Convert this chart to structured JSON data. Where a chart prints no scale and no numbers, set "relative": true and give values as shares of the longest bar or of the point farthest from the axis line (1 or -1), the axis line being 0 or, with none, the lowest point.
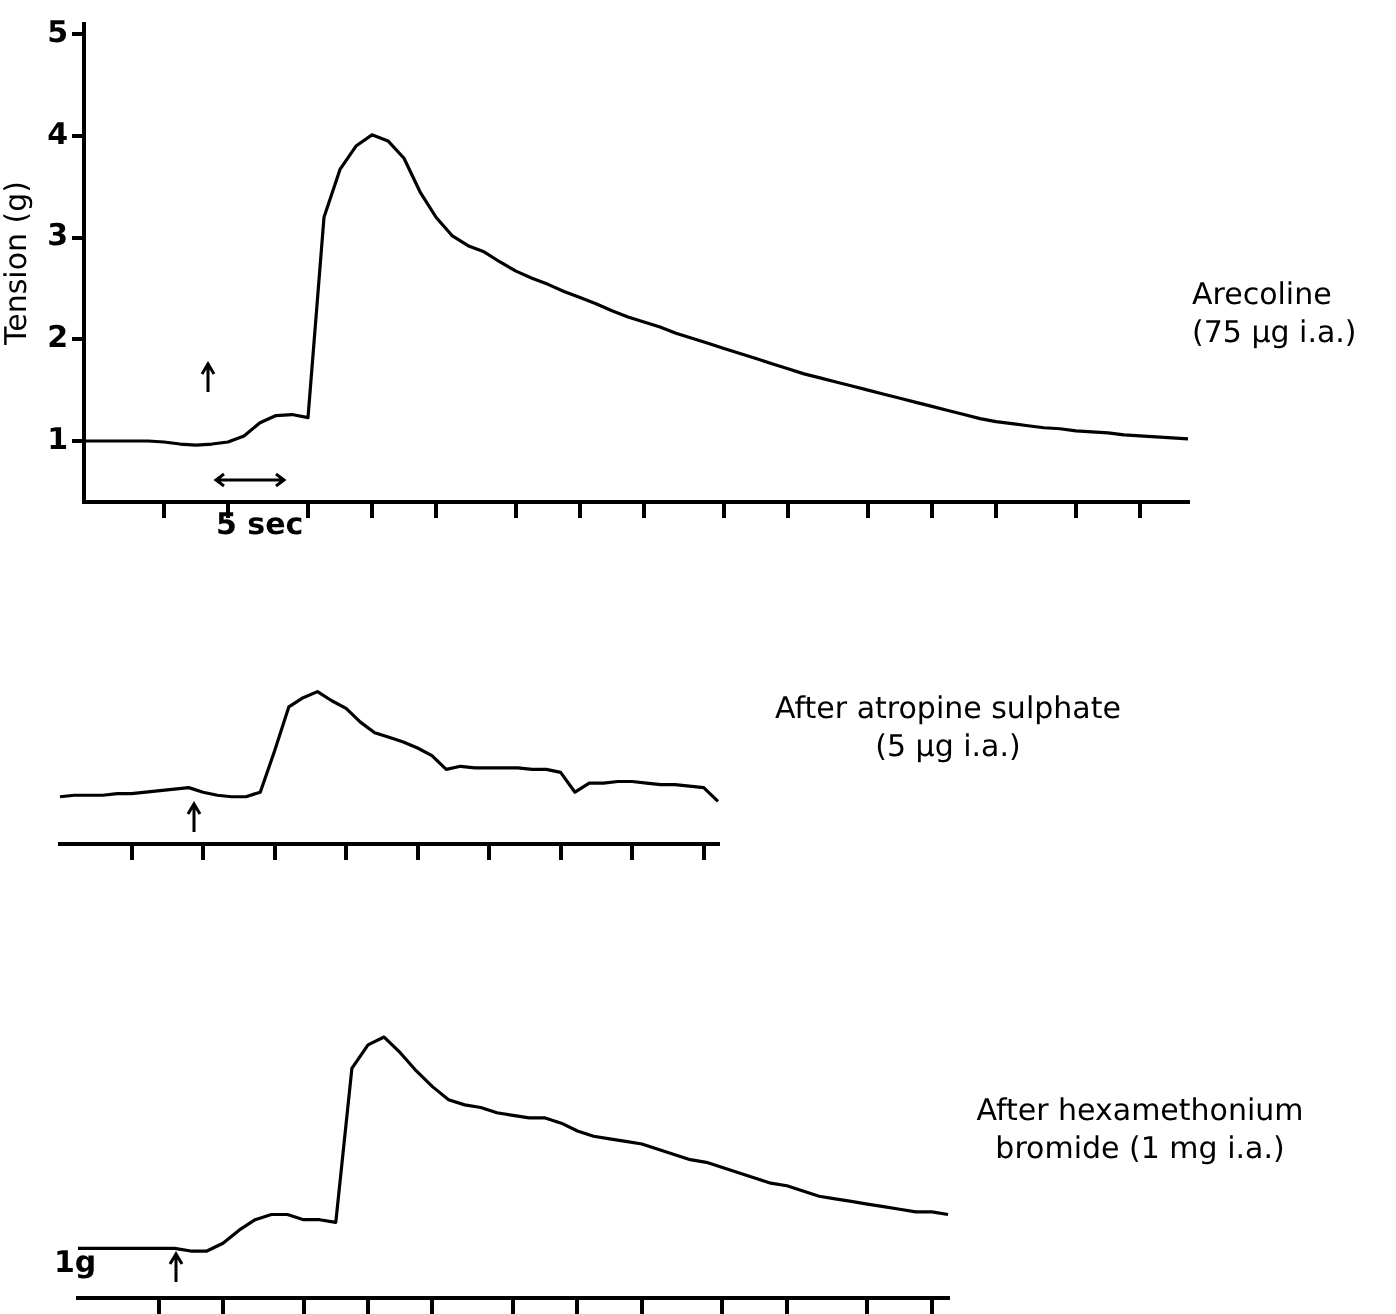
{
  "chart_data": [
    {
      "type": "line",
      "ylabel": "Tension (g)",
      "ylim": [
        0.4,
        5.1
      ],
      "yticks": [
        1,
        2,
        3,
        4,
        5
      ],
      "grid": false,
      "legend": false,
      "marker": "none",
      "line_style": "solid",
      "tick_labels": "y",
      "annotations": [
        "Arecoline (75 μg i.a.)",
        "5 sec"
      ],
      "categories": [
        null,
        null,
        null,
        null,
        null,
        null,
        null,
        null,
        null,
        null,
        null,
        null,
        null,
        null,
        null,
        null,
        null,
        null,
        null,
        null,
        null,
        null,
        null,
        null,
        null,
        null,
        null,
        null,
        null,
        null,
        null,
        null,
        null,
        null,
        null,
        null,
        null,
        null,
        null,
        null,
        null,
        null,
        null,
        null,
        null,
        null,
        null,
        null,
        null,
        null,
        null,
        null,
        null,
        null,
        null,
        null,
        null,
        null,
        null,
        null,
        null,
        null,
        null,
        null,
        null,
        null,
        null,
        null,
        null,
        null
      ],
      "series": [
        {
          "color": "#000000",
          "values": [
            1.0,
            1.0,
            1.0,
            1.0,
            1.0,
            0.99,
            0.97,
            0.96,
            0.97,
            0.99,
            1.05,
            1.18,
            1.25,
            1.26,
            1.23,
            3.2,
            3.67,
            3.9,
            4.01,
            3.95,
            3.78,
            3.45,
            3.2,
            3.02,
            2.92,
            2.86,
            2.76,
            2.67,
            2.6,
            2.54,
            2.47,
            2.41,
            2.35,
            2.28,
            2.22,
            2.17,
            2.12,
            2.06,
            2.01,
            1.96,
            1.91,
            1.86,
            1.81,
            1.76,
            1.71,
            1.66,
            1.62,
            1.58,
            1.54,
            1.5,
            1.46,
            1.42,
            1.38,
            1.34,
            1.3,
            1.26,
            1.22,
            1.19,
            1.17,
            1.15,
            1.13,
            1.12,
            1.1,
            1.09,
            1.08,
            1.06,
            1.05,
            1.04,
            1.03,
            1.02
          ]
        }
      ]
    },
    {
      "type": "line",
      "relative": true,
      "grid": false,
      "legend": false,
      "marker": "none",
      "line_style": "solid",
      "tick_labels": false,
      "annotations": [
        "After atropine sulphate (5 μg i.a.)"
      ],
      "categories": [
        null,
        null,
        null,
        null,
        null,
        null,
        null,
        null,
        null,
        null,
        null,
        null,
        null,
        null,
        null,
        null,
        null,
        null,
        null,
        null,
        null,
        null,
        null,
        null,
        null,
        null,
        null,
        null,
        null,
        null,
        null,
        null,
        null,
        null,
        null,
        null,
        null,
        null,
        null,
        null,
        null,
        null,
        null,
        null,
        null,
        null,
        null
      ],
      "series": [
        {
          "color": "#000000",
          "values": [
            0.31,
            0.32,
            0.32,
            0.32,
            0.33,
            0.33,
            0.34,
            0.35,
            0.36,
            0.37,
            0.34,
            0.32,
            0.31,
            0.31,
            0.34,
            0.61,
            0.9,
            0.96,
            1.0,
            0.94,
            0.89,
            0.8,
            0.73,
            0.7,
            0.67,
            0.63,
            0.58,
            0.49,
            0.51,
            0.5,
            0.5,
            0.5,
            0.5,
            0.49,
            0.49,
            0.47,
            0.34,
            0.4,
            0.4,
            0.41,
            0.41,
            0.4,
            0.39,
            0.39,
            0.38,
            0.37,
            0.28
          ]
        }
      ]
    },
    {
      "type": "line",
      "relative": true,
      "grid": false,
      "legend": false,
      "marker": "none",
      "line_style": "solid",
      "tick_labels": false,
      "annotations": [
        "After hexamethonium bromide (1 mg i.a.)",
        "1g"
      ],
      "categories": [
        null,
        null,
        null,
        null,
        null,
        null,
        null,
        null,
        null,
        null,
        null,
        null,
        null,
        null,
        null,
        null,
        null,
        null,
        null,
        null,
        null,
        null,
        null,
        null,
        null,
        null,
        null,
        null,
        null,
        null,
        null,
        null,
        null,
        null,
        null,
        null,
        null,
        null,
        null,
        null,
        null,
        null,
        null,
        null,
        null,
        null,
        null,
        null,
        null,
        null,
        null,
        null,
        null,
        null,
        null
      ],
      "series": [
        {
          "color": "#000000",
          "values": [
            0.19,
            0.19,
            0.19,
            0.19,
            0.19,
            0.19,
            0.19,
            0.18,
            0.18,
            0.21,
            0.26,
            0.3,
            0.32,
            0.32,
            0.3,
            0.3,
            0.29,
            0.88,
            0.97,
            1.0,
            0.94,
            0.87,
            0.81,
            0.76,
            0.74,
            0.73,
            0.71,
            0.7,
            0.69,
            0.69,
            0.67,
            0.64,
            0.62,
            0.61,
            0.6,
            0.59,
            0.57,
            0.55,
            0.53,
            0.52,
            0.5,
            0.48,
            0.46,
            0.44,
            0.43,
            0.41,
            0.39,
            0.38,
            0.37,
            0.36,
            0.35,
            0.34,
            0.33,
            0.33,
            0.32
          ]
        }
      ]
    }
  ]
}
